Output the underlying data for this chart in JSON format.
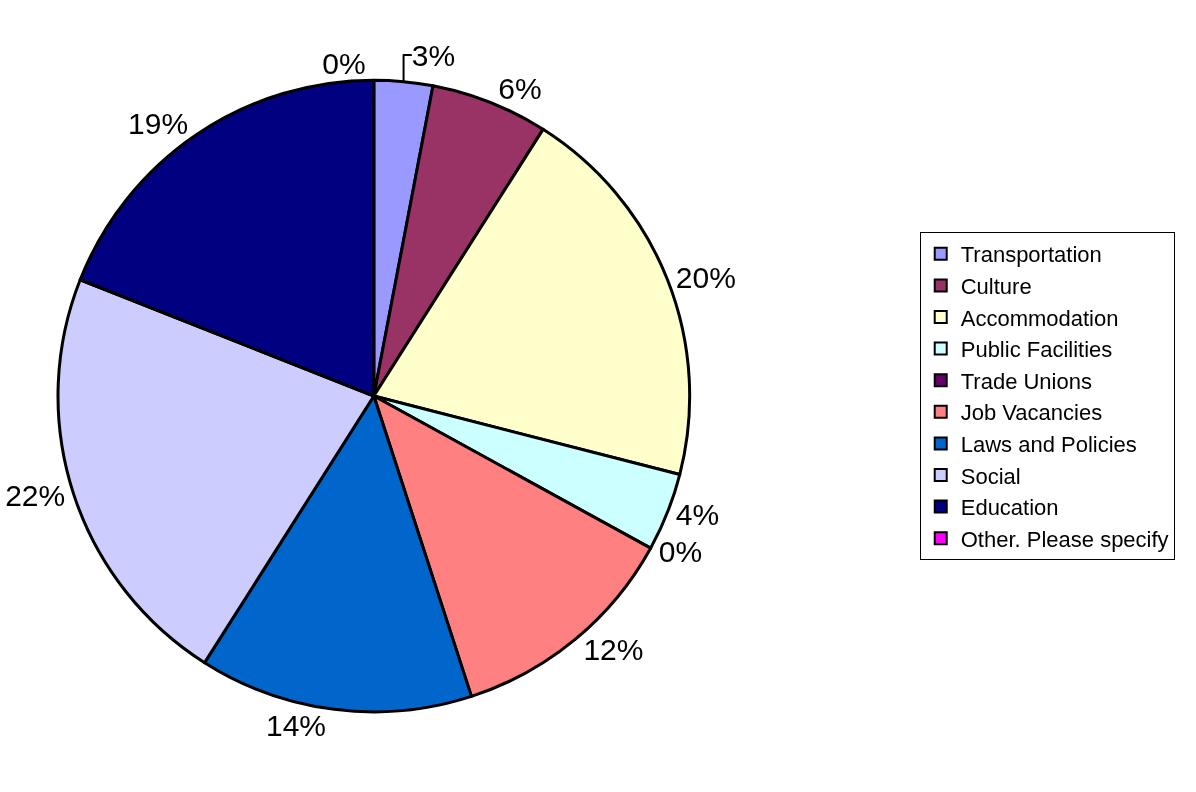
{
  "chart_data": {
    "type": "pie",
    "categories": [
      "Transportation",
      "Culture",
      "Accommodation",
      "Public Facilities",
      "Trade Unions",
      "Job Vacancies",
      "Laws and Policies",
      "Social",
      "Education",
      "Other. Please specify"
    ],
    "values": [
      3,
      6,
      20,
      4,
      0,
      12,
      14,
      22,
      19,
      0
    ],
    "value_labels": [
      "3%",
      "6%",
      "20%",
      "4%",
      "0%",
      "12%",
      "14%",
      "22%",
      "19%",
      "0%"
    ],
    "colors": [
      "#9999ff",
      "#993366",
      "#ffffcc",
      "#ccffff",
      "#660066",
      "#ff8080",
      "#0066cc",
      "#ccccff",
      "#000080",
      "#ff00ff"
    ],
    "legend": "right"
  }
}
